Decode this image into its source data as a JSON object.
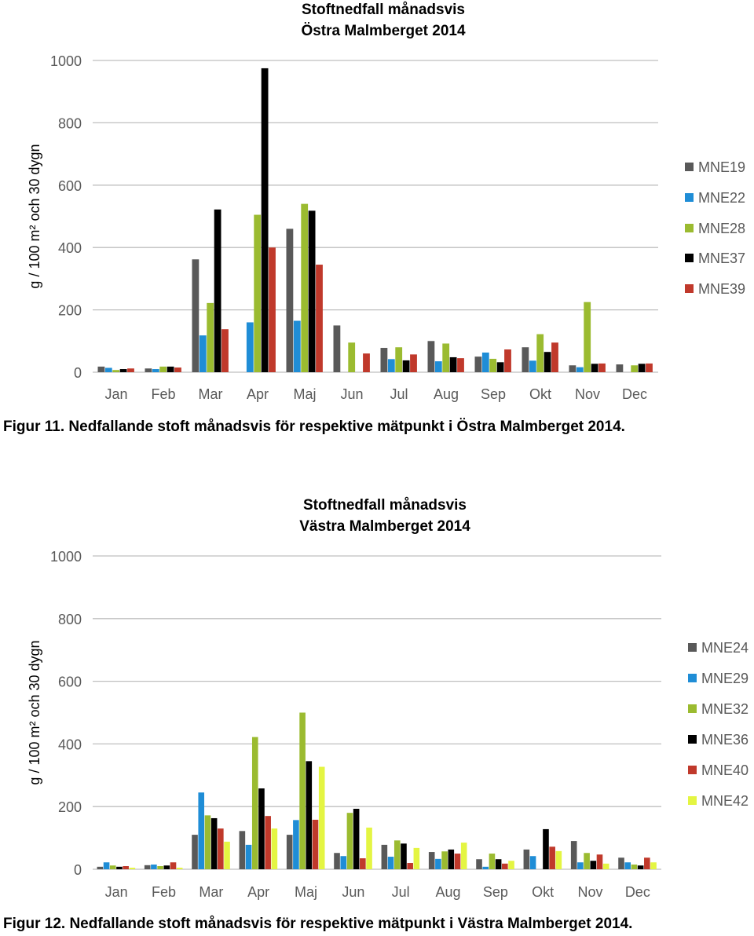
{
  "figures": [
    {
      "caption": "Figur 11. Nedfallande stoft månadsvis för respektive mätpunkt i Östra Malmberget 2014."
    },
    {
      "caption": "Figur 12. Nedfallande stoft månadsvis för respektive mätpunkt i Västra Malmberget 2014."
    }
  ],
  "chart_data": [
    {
      "type": "bar",
      "title": "Stoftnedfall månadsvis\nÖstra Malmberget 2014",
      "ylabel": "g / 100 m² och 30 dygn",
      "xlabel": "",
      "ylim": [
        0,
        1000
      ],
      "yticks": [
        0,
        200,
        400,
        600,
        800,
        1000
      ],
      "grid": true,
      "legend_position": "right",
      "categories": [
        "Jan",
        "Feb",
        "Mar",
        "Apr",
        "Maj",
        "Jun",
        "Jul",
        "Aug",
        "Sep",
        "Okt",
        "Nov",
        "Dec"
      ],
      "series": [
        {
          "name": "MNE19",
          "color": "#595959",
          "values": [
            18,
            12,
            362,
            null,
            460,
            150,
            78,
            100,
            50,
            80,
            22,
            25
          ]
        },
        {
          "name": "MNE22",
          "color": "#1f8dd6",
          "values": [
            14,
            10,
            118,
            160,
            165,
            null,
            42,
            35,
            63,
            37,
            16,
            null
          ]
        },
        {
          "name": "MNE28",
          "color": "#9bbb30",
          "values": [
            7,
            18,
            222,
            505,
            540,
            95,
            80,
            92,
            43,
            122,
            225,
            22
          ]
        },
        {
          "name": "MNE37",
          "color": "#000000",
          "values": [
            10,
            18,
            522,
            975,
            518,
            null,
            38,
            48,
            32,
            65,
            27,
            27
          ]
        },
        {
          "name": "MNE39",
          "color": "#c0392b",
          "values": [
            12,
            15,
            138,
            400,
            345,
            60,
            57,
            45,
            73,
            95,
            28,
            28
          ]
        }
      ]
    },
    {
      "type": "bar",
      "title": "Stoftnedfall månadsvis\nVästra Malmberget 2014",
      "ylabel": "g / 100 m² och 30 dygn",
      "xlabel": "",
      "ylim": [
        0,
        1000
      ],
      "yticks": [
        0,
        200,
        400,
        600,
        800,
        1000
      ],
      "grid": true,
      "legend_position": "right",
      "categories": [
        "Jan",
        "Feb",
        "Mar",
        "Apr",
        "Maj",
        "Jun",
        "Jul",
        "Aug",
        "Sep",
        "Okt",
        "Nov",
        "Dec"
      ],
      "series": [
        {
          "name": "MNE24",
          "color": "#595959",
          "values": [
            8,
            13,
            110,
            122,
            110,
            52,
            78,
            55,
            32,
            63,
            90,
            37
          ]
        },
        {
          "name": "MNE29",
          "color": "#1f8dd6",
          "values": [
            22,
            15,
            245,
            78,
            157,
            42,
            40,
            33,
            8,
            42,
            22,
            22
          ]
        },
        {
          "name": "MNE32",
          "color": "#9bbb30",
          "values": [
            12,
            10,
            172,
            422,
            500,
            180,
            92,
            57,
            50,
            null,
            52,
            15
          ]
        },
        {
          "name": "MNE36",
          "color": "#000000",
          "values": [
            8,
            12,
            163,
            258,
            345,
            193,
            82,
            63,
            32,
            128,
            27,
            12
          ]
        },
        {
          "name": "MNE40",
          "color": "#c0392b",
          "values": [
            10,
            22,
            130,
            170,
            158,
            35,
            20,
            50,
            18,
            72,
            47,
            37
          ]
        },
        {
          "name": "MNE42",
          "color": "#e4f542",
          "values": [
            5,
            5,
            88,
            130,
            327,
            133,
            68,
            85,
            27,
            58,
            18,
            22
          ]
        }
      ]
    }
  ]
}
